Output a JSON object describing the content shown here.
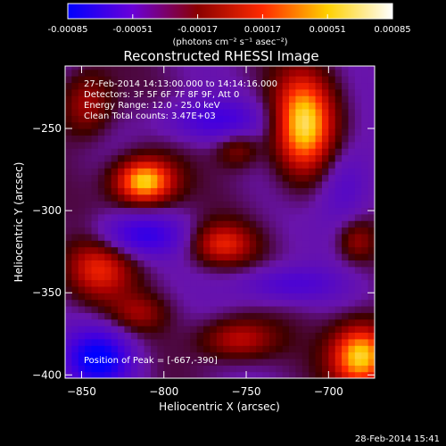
{
  "colorbar": {
    "ticks": [
      "-0.00085",
      "-0.00051",
      "-0.00017",
      "0.00017",
      "0.00051",
      "0.00085"
    ],
    "tick_values": [
      -0.00085,
      -0.00051,
      -0.00017,
      0.00017,
      0.00051,
      0.00085
    ],
    "range": [
      -0.00085,
      0.00085
    ],
    "unit_label": "(photons cm⁻² s⁻¹ asec⁻²)",
    "colors": [
      "#0000ff",
      "#6a00d8",
      "#8a0000",
      "#ff2a00",
      "#ffd000",
      "#ffffff"
    ]
  },
  "chart_data": {
    "type": "heatmap",
    "title": "Reconstructed RHESSI Image",
    "xlabel": "Heliocentric X (arcsec)",
    "ylabel": "Heliocentric Y (arcsec)",
    "xlim": [
      -860,
      -672
    ],
    "ylim": [
      -402,
      -212
    ],
    "x_ticks": [
      -850,
      -800,
      -750,
      -700
    ],
    "x_tick_labels": [
      "−850",
      "−800",
      "−750",
      "−700"
    ],
    "y_ticks": [
      -250,
      -300,
      -350,
      -400
    ],
    "y_tick_labels": [
      "−250",
      "−300",
      "−350",
      "−400"
    ],
    "annotations": [
      "27-Feb-2014 14:13:00.000 to 14:14:16.000",
      "Detectors: 3F 5F 6F 7F 8F 9F, Att 0",
      "Energy Range: 12.0 - 25.0 keV",
      "Clean     Total counts: 3.47E+03"
    ],
    "peak_label": "Position of Peak = [-667,-390]",
    "peak_position": [
      -667,
      -390
    ],
    "sources": [
      {
        "x": -812,
        "y": -282,
        "sx": 13,
        "sy": 10,
        "amp": 1.0
      },
      {
        "x": -715,
        "y": -247,
        "sx": 13,
        "sy": 22,
        "amp": 0.95
      },
      {
        "x": -680,
        "y": -388,
        "sx": 13,
        "sy": 14,
        "amp": 1.0
      },
      {
        "x": -765,
        "y": -320,
        "sx": 14,
        "sy": 9,
        "amp": 0.55
      },
      {
        "x": -840,
        "y": -335,
        "sx": 15,
        "sy": 14,
        "amp": 0.55
      },
      {
        "x": -755,
        "y": -378,
        "sx": 16,
        "sy": 9,
        "amp": 0.5
      },
      {
        "x": -847,
        "y": -235,
        "sx": 11,
        "sy": 14,
        "amp": 0.45
      },
      {
        "x": -755,
        "y": -262,
        "sx": 9,
        "sy": 8,
        "amp": 0.35
      },
      {
        "x": -683,
        "y": -318,
        "sx": 8,
        "sy": 9,
        "amp": 0.35
      },
      {
        "x": -815,
        "y": -362,
        "sx": 12,
        "sy": 8,
        "amp": 0.3
      },
      {
        "x": -840,
        "y": -390,
        "sx": 14,
        "sy": 12,
        "amp": -0.85
      },
      {
        "x": -815,
        "y": -315,
        "sx": 20,
        "sy": 9,
        "amp": -0.55
      },
      {
        "x": -770,
        "y": -245,
        "sx": 22,
        "sy": 9,
        "amp": -0.45
      },
      {
        "x": -725,
        "y": -345,
        "sx": 22,
        "sy": 8,
        "amp": -0.4
      },
      {
        "x": -690,
        "y": -285,
        "sx": 12,
        "sy": 18,
        "amp": -0.35
      }
    ]
  },
  "footer": {
    "timestamp": "28-Feb-2014 15:41"
  }
}
